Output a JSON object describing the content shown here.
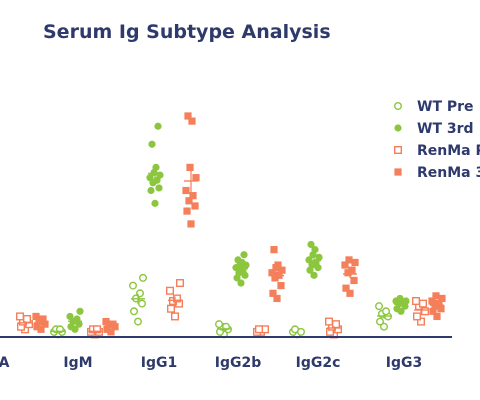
{
  "chart_data": {
    "type": "scatter",
    "title": "Serum Ig Subtype Analysis",
    "xlabel": "",
    "ylabel": "",
    "categories": [
      "A",
      "IgM",
      "IgG1",
      "IgG2b",
      "IgG2c",
      "IgG3"
    ],
    "ylim": [
      0,
      100
    ],
    "legend_position": "top-right",
    "grid": false,
    "colors": {
      "wt": "#8cc63f",
      "renma": "#f47f5a",
      "axis": "#2e3a6b",
      "title": "#2e3a6b",
      "legend_text": "#2e3a6b"
    },
    "series": [
      {
        "name": "WT Pre",
        "marker": "open-circle",
        "color": "#8cc63f",
        "values": [
          [],
          [
            1,
            2,
            2,
            3,
            3
          ],
          [
            6,
            10,
            13,
            15,
            17,
            20,
            23
          ],
          [
            1,
            2,
            3,
            4,
            4,
            5
          ],
          [
            1,
            2,
            2,
            3
          ],
          [
            4,
            6,
            8,
            9,
            10,
            12
          ]
        ]
      },
      {
        "name": "WT 3rd",
        "marker": "filled-circle",
        "color": "#8cc63f",
        "values": [
          [],
          [
            3,
            4,
            5,
            6,
            7,
            8,
            10
          ],
          [
            52,
            57,
            58,
            60,
            61,
            62,
            63,
            64,
            66,
            75,
            82
          ],
          [
            21,
            23,
            24,
            25,
            26,
            27,
            28,
            28,
            29,
            30,
            32
          ],
          [
            24,
            26,
            27,
            28,
            29,
            30,
            31,
            32,
            34,
            36
          ],
          [
            10,
            11,
            12,
            13,
            13,
            14,
            14,
            15
          ]
        ]
      },
      {
        "name": "RenMa Pre",
        "marker": "open-square",
        "color": "#f47f5a",
        "values": [
          [
            3,
            4,
            5,
            6,
            7,
            8
          ],
          [
            1,
            2,
            2,
            3,
            3
          ],
          [
            8,
            11,
            13,
            14,
            15,
            18,
            21
          ],
          [
            2,
            2,
            3,
            3
          ],
          [
            1,
            2,
            3,
            4,
            5,
            6
          ],
          [
            6,
            8,
            10,
            12,
            13,
            14
          ]
        ]
      },
      {
        "name": "RenMa 3rd",
        "marker": "filled-square",
        "color": "#f47f5a",
        "values": [
          [
            3,
            4,
            5,
            6,
            7,
            8
          ],
          [
            2,
            3,
            4,
            5,
            5,
            6
          ],
          [
            44,
            49,
            51,
            53,
            55,
            57,
            62,
            66,
            84,
            86
          ],
          [
            15,
            17,
            20,
            23,
            24,
            25,
            26,
            27,
            28,
            34
          ],
          [
            17,
            19,
            22,
            25,
            26,
            28,
            29,
            30
          ],
          [
            8,
            10,
            11,
            12,
            13,
            14,
            15,
            16
          ]
        ]
      }
    ]
  }
}
